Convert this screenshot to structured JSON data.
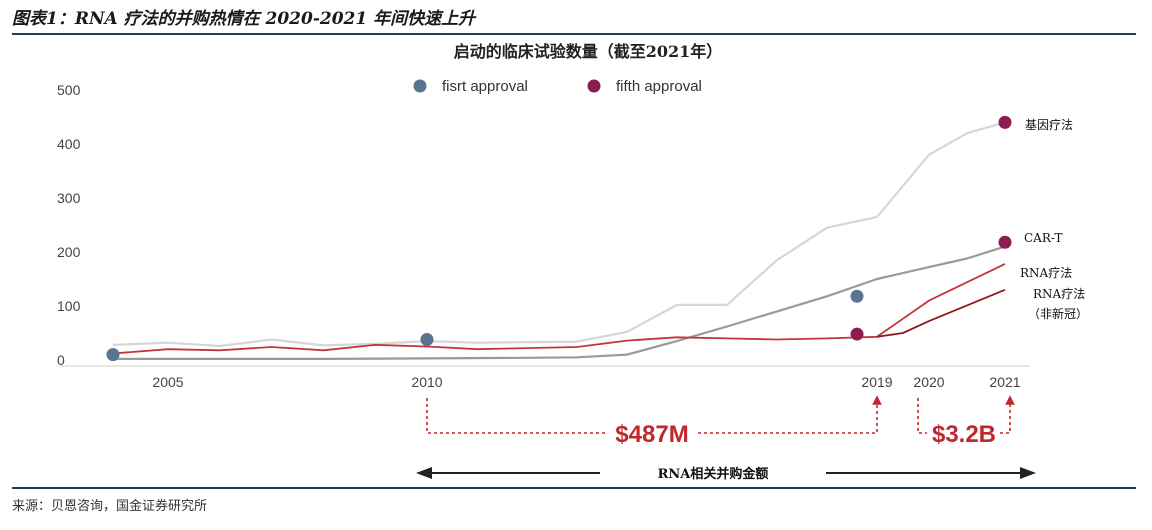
{
  "figure_title": "图表1：RNA 疗法的并购热情在 2020-2021 年间快速上升",
  "source": "来源：贝恩咨询，国金证券研究所",
  "colors": {
    "gene": "#d6d6d6",
    "cart": "#9a9a9a",
    "rna": "#c4343a",
    "rna_noncovid": "#8b1a1d",
    "first_marker": "#5a7490",
    "fifth_marker": "#8c1c52",
    "money": "#c0282d"
  },
  "chart_data": {
    "type": "line",
    "title": "启动的临床试验数量（截至2021年）",
    "ylim": [
      0,
      500
    ],
    "xlim": [
      2004,
      2022
    ],
    "y_ticks": [
      0,
      100,
      200,
      300,
      400,
      500
    ],
    "x_ticks": [
      2005,
      2010,
      2019,
      2020,
      2021
    ],
    "legend": {
      "placement": "top-center",
      "items": [
        {
          "label": "fisrt approval",
          "marker": "first"
        },
        {
          "label": "fifth approval",
          "marker": "fifth"
        }
      ]
    },
    "series": [
      {
        "name": "基因疗法",
        "color_key": "gene",
        "x": [
          2004,
          2005,
          2006,
          2007,
          2008,
          2009,
          2010,
          2011,
          2012,
          2013,
          2014,
          2015,
          2016,
          2017,
          2018,
          2019,
          2020,
          2020.5,
          2021
        ],
        "y": [
          28,
          32,
          26,
          38,
          27,
          30,
          35,
          32,
          33,
          34,
          52,
          102,
          102,
          185,
          245,
          265,
          380,
          420,
          440
        ]
      },
      {
        "name": "CAR-T",
        "color_key": "cart",
        "x": [
          2004,
          2008,
          2010,
          2012,
          2013,
          2014,
          2015,
          2016,
          2017,
          2018,
          2019,
          2020,
          2020.5,
          2021
        ],
        "y": [
          2,
          2,
          3,
          4,
          5,
          10,
          35,
          62,
          90,
          118,
          150,
          172,
          188,
          210
        ]
      },
      {
        "name": "RNA疗法",
        "color_key": "rna",
        "x": [
          2004,
          2005,
          2006,
          2007,
          2008,
          2009,
          2010,
          2011,
          2012,
          2013,
          2014,
          2015,
          2016,
          2017,
          2018,
          2019,
          2020,
          2021
        ],
        "y": [
          12,
          20,
          18,
          24,
          18,
          28,
          25,
          20,
          22,
          24,
          36,
          42,
          40,
          38,
          40,
          43,
          110,
          178
        ]
      },
      {
        "name": "RNA疗法（非新冠）",
        "color_key": "rna_noncovid",
        "x": [
          2019,
          2019.5,
          2020,
          2021
        ],
        "y": [
          43,
          50,
          72,
          130
        ]
      }
    ],
    "markers": [
      {
        "type": "first",
        "x": 2004,
        "y": 10
      },
      {
        "type": "first",
        "x": 2010,
        "y": 38
      },
      {
        "type": "first",
        "x": 2018.6,
        "y": 118
      },
      {
        "type": "fifth",
        "x": 2018.6,
        "y": 48
      },
      {
        "type": "fifth",
        "x": 2021,
        "y": 218
      },
      {
        "type": "fifth",
        "x": 2021,
        "y": 440
      }
    ],
    "series_labels": [
      {
        "text": "基因疗法",
        "series": "基因疗法"
      },
      {
        "text": "CAR-T",
        "series": "CAR-T"
      },
      {
        "text": "RNA疗法",
        "series": "RNA疗法"
      },
      {
        "text": "RNA疗法",
        "series": "RNA疗法（非新冠）"
      },
      {
        "text": "（非新冠）",
        "series": "RNA疗法（非新冠）"
      }
    ],
    "annotations": {
      "period1_value": "$487M",
      "period2_value": "$3.2B",
      "caption": "RNA相关并购金额"
    }
  }
}
